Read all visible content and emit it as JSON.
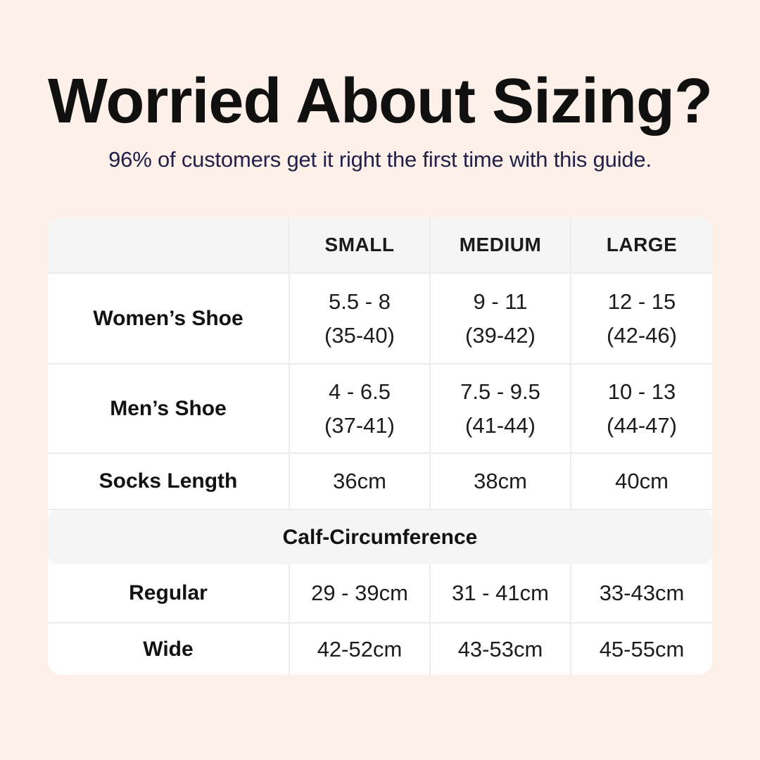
{
  "page": {
    "title": "Worried About Sizing?",
    "subtitle": "96% of customers get it right the first time with this guide."
  },
  "colors": {
    "background": "#fcf0e8",
    "title_text": "#101010",
    "subtitle_text": "#23214a",
    "table_bg": "#ffffff",
    "header_bg": "#f5f5f6",
    "divider": "#ececec",
    "cell_text": "#1c1c1c"
  },
  "chart_data": {
    "type": "table",
    "title": "Worried About Sizing?",
    "subtitle": "96% of customers get it right the first time with this guide.",
    "columns": [
      "",
      "SMALL",
      "MEDIUM",
      "LARGE"
    ],
    "shoe_rows": [
      {
        "label": "Women’s Shoe",
        "cells": [
          {
            "line1": "5.5 - 8",
            "line2": "(35-40)"
          },
          {
            "line1": "9 - 11",
            "line2": "(39-42)"
          },
          {
            "line1": "12 - 15",
            "line2": "(42-46)"
          }
        ]
      },
      {
        "label": "Men’s Shoe",
        "cells": [
          {
            "line1": "4 - 6.5",
            "line2": "(37-41)"
          },
          {
            "line1": "7.5 - 9.5",
            "line2": "(41-44)"
          },
          {
            "line1": "10 - 13",
            "line2": "(44-47)"
          }
        ]
      },
      {
        "label": "Socks Length",
        "cells": [
          {
            "line1": "36cm"
          },
          {
            "line1": "38cm"
          },
          {
            "line1": "40cm"
          }
        ]
      }
    ],
    "section_header": "Calf-Circumference",
    "calf_rows": [
      {
        "label": "Regular",
        "cells": [
          {
            "line1": "29 - 39cm"
          },
          {
            "line1": "31 - 41cm"
          },
          {
            "line1": "33-43cm"
          }
        ]
      },
      {
        "label": "Wide",
        "cells": [
          {
            "line1": "42-52cm"
          },
          {
            "line1": "43-53cm"
          },
          {
            "line1": "45-55cm"
          }
        ]
      }
    ]
  }
}
